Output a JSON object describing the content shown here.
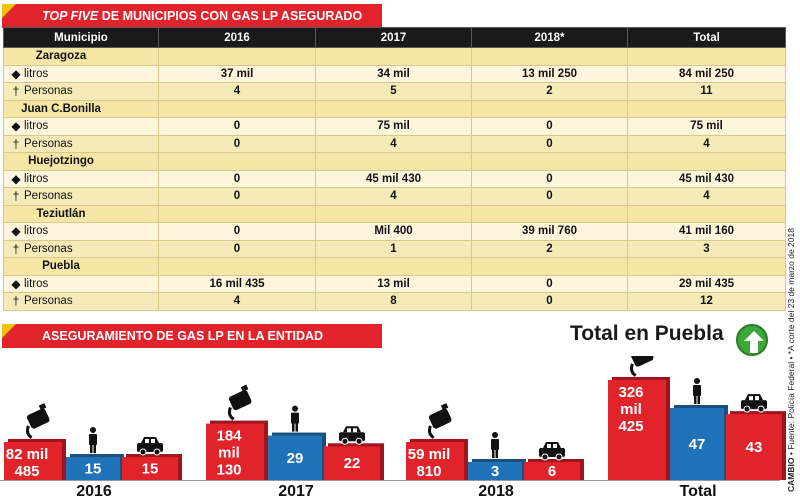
{
  "banner_top": {
    "italic": "TOP FIVE",
    "rest": " DE MUNICIPIOS CON GAS LP ASEGURADO"
  },
  "banner_bottom": "ASEGURAMIENTO DE GAS LP EN LA ENTIDAD",
  "table": {
    "headers": [
      "Municipio",
      "2016",
      "2017",
      "2018*",
      "Total"
    ],
    "row_labels": {
      "litros": "litros",
      "personas": "Personas"
    },
    "municipios": [
      {
        "name": "Zaragoza",
        "litros": [
          "37 mil",
          "34 mil",
          "13 mil 250",
          "84 mil 250"
        ],
        "personas": [
          "4",
          "5",
          "2",
          "11"
        ]
      },
      {
        "name": "Juan C.Bonilla",
        "litros": [
          "0",
          "75 mil",
          "0",
          "75 mil"
        ],
        "personas": [
          "0",
          "4",
          "0",
          "4"
        ]
      },
      {
        "name": "Huejotzingo",
        "litros": [
          "0",
          "45 mil 430",
          "0",
          "45 mil 430"
        ],
        "personas": [
          "0",
          "4",
          "0",
          "4"
        ]
      },
      {
        "name": "Teziutlán",
        "litros": [
          "0",
          "Mil 400",
          "39 mil 760",
          "41 mil 160"
        ],
        "personas": [
          "0",
          "1",
          "2",
          "3"
        ]
      },
      {
        "name": "Puebla",
        "litros": [
          "16 mil 435",
          "13 mil",
          "0",
          "29 mil 435"
        ],
        "personas": [
          "4",
          "8",
          "0",
          "12"
        ]
      }
    ]
  },
  "total_title": "Total en Puebla",
  "colors": {
    "red": "#e1232b",
    "blue": "#1f72b8",
    "yellow": "#f4c400",
    "header": "#1a1a1a",
    "green": "#3da83a"
  },
  "icons": {
    "litros": "gas-tank-icon",
    "personas": "person-icon",
    "vehiculos": "car-icon",
    "trend": "up-arrow-icon"
  },
  "chart_data": {
    "type": "bar",
    "categories": [
      "2016",
      "2017",
      "2018",
      "Total"
    ],
    "series": [
      {
        "values": [
          82485,
          184130,
          59810,
          326425
        ],
        "labels": [
          "82 mil\n485",
          "184\nmil\n130",
          "59 mil\n810",
          "326\nmil\n425"
        ],
        "color": "#e1232b",
        "icon": "gas-tank-icon"
      },
      {
        "values": [
          15,
          29,
          3,
          47
        ],
        "labels": [
          "15",
          "29",
          "3",
          "47"
        ],
        "color": "#1f72b8",
        "icon": "person-icon"
      },
      {
        "values": [
          15,
          22,
          6,
          43
        ],
        "labels": [
          "15",
          "22",
          "6",
          "43"
        ],
        "color": "#e1232b",
        "icon": "car-icon"
      }
    ]
  },
  "sidenote": {
    "brand": "CAMBIO",
    "source": " • Fuente: Policía Federal • *A corte del 23 de marzo de 2018"
  }
}
